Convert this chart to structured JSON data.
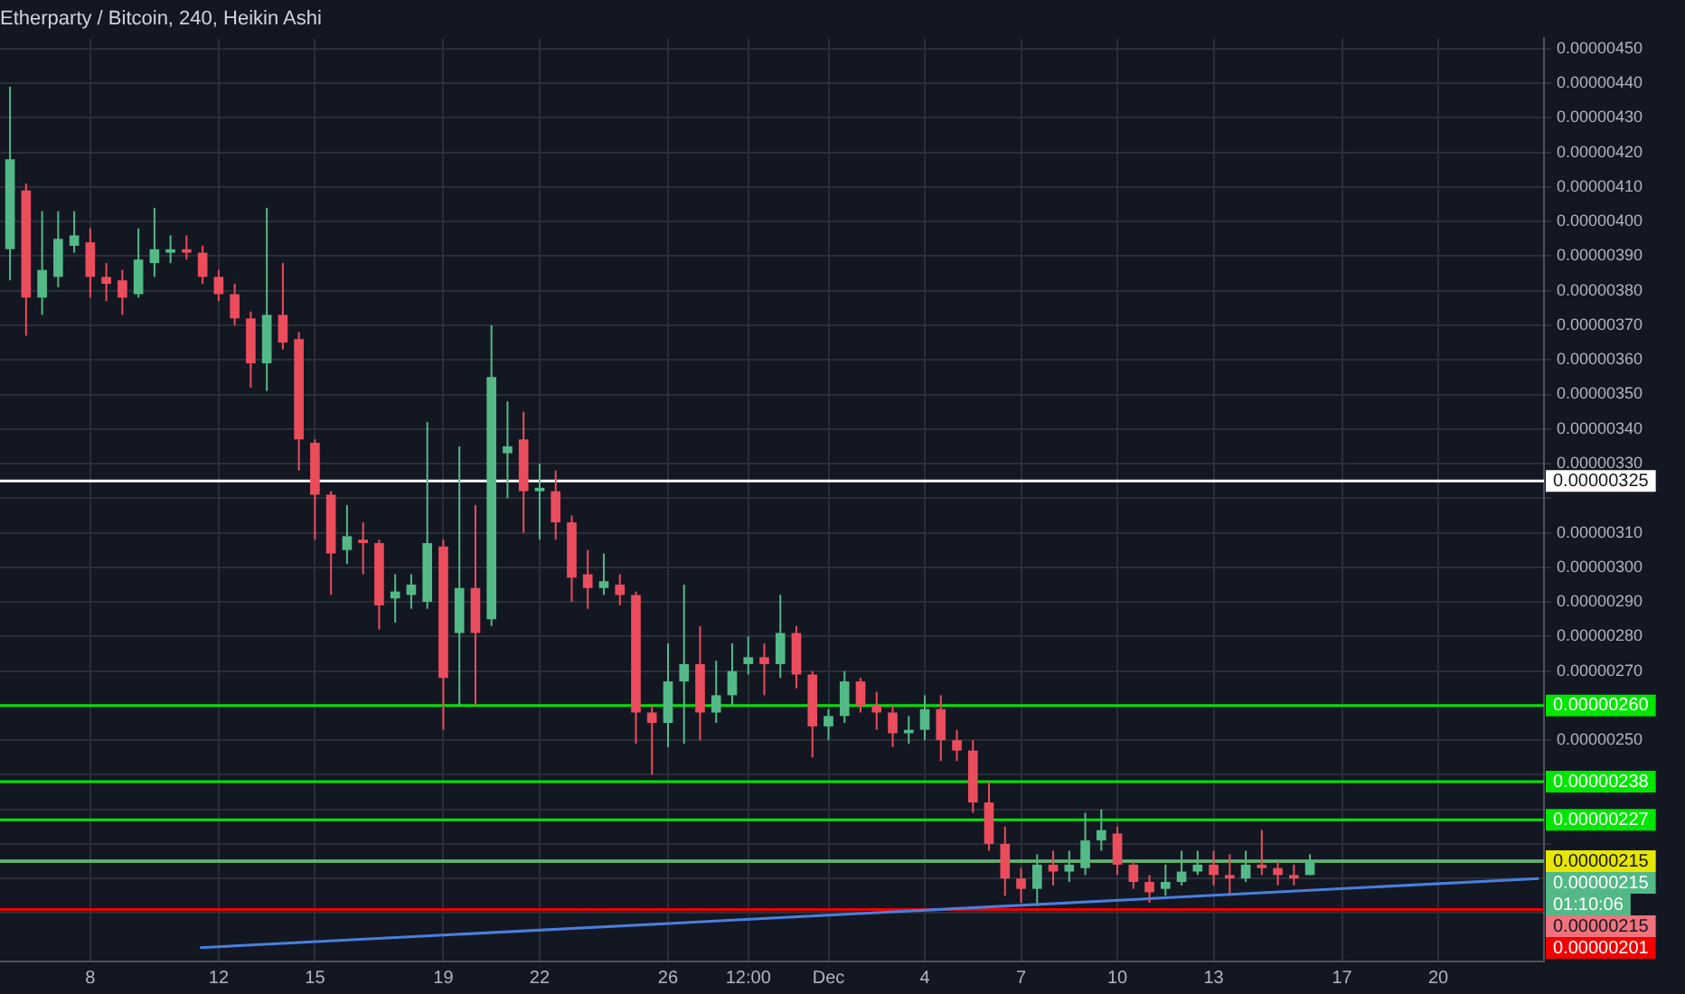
{
  "chart_data": {
    "type": "candlestick",
    "title": "Etherparty / Bitcoin, 240, Heikin Ashi",
    "x": [
      "--11-05T12:00",
      "--11-06T00:00",
      "--11-06T12:00",
      "--11-07T00:00",
      "--11-07T12:00",
      "--11-08T00:00",
      "--11-08T12:00",
      "--11-09T00:00",
      "--11-09T12:00",
      "--11-10T00:00",
      "--11-10T12:00",
      "--11-11T00:00",
      "--11-11T12:00",
      "--11-12T00:00",
      "--11-12T12:00",
      "--11-13T00:00",
      "--11-13T12:00",
      "--11-14T00:00",
      "--11-14T12:00",
      "--11-15T00:00",
      "--11-15T12:00",
      "--11-16T00:00",
      "--11-16T12:00",
      "--11-17T00:00",
      "--11-17T12:00",
      "--11-18T00:00",
      "--11-18T12:00",
      "--11-19T00:00",
      "--11-19T12:00",
      "--11-20T00:00",
      "--11-20T12:00",
      "--11-21T00:00",
      "--11-21T12:00",
      "--11-22T00:00",
      "--11-22T12:00",
      "--11-23T00:00",
      "--11-23T12:00",
      "--11-24T00:00",
      "--11-24T12:00",
      "--11-25T00:00",
      "--11-25T12:00",
      "--11-26T00:00",
      "--11-26T12:00",
      "--11-27T00:00",
      "--11-27T12:00",
      "--11-28T00:00",
      "--11-28T12:00",
      "--11-29T00:00",
      "--11-29T12:00",
      "--11-30T00:00",
      "--11-30T12:00",
      "--12-01T00:00",
      "--12-01T12:00",
      "--12-02T00:00",
      "--12-02T12:00",
      "--12-03T00:00",
      "--12-03T12:00",
      "--12-04T00:00",
      "--12-04T12:00",
      "--12-05T00:00",
      "--12-05T12:00",
      "--12-06T00:00",
      "--12-06T12:00",
      "--12-07T00:00",
      "--12-07T12:00",
      "--12-08T00:00",
      "--12-08T12:00",
      "--12-09T00:00",
      "--12-09T12:00",
      "--12-10T00:00",
      "--12-10T12:00",
      "--12-11T00:00",
      "--12-11T12:00",
      "--12-12T00:00",
      "--12-12T12:00",
      "--12-13T00:00",
      "--12-13T12:00",
      "--12-14T00:00",
      "--12-14T12:00",
      "--12-15T00:00",
      "--12-15T12:00",
      "--12-16T00:00"
    ],
    "ohlc": [
      [
        3.92e-06,
        4.39e-06,
        3.83e-06,
        4.18e-06
      ],
      [
        4.09e-06,
        4.11e-06,
        3.67e-06,
        3.78e-06
      ],
      [
        3.78e-06,
        4.03e-06,
        3.73e-06,
        3.86e-06
      ],
      [
        3.84e-06,
        4.03e-06,
        3.81e-06,
        3.95e-06
      ],
      [
        3.93e-06,
        4.03e-06,
        3.91e-06,
        3.96e-06
      ],
      [
        3.94e-06,
        3.98e-06,
        3.78e-06,
        3.84e-06
      ],
      [
        3.84e-06,
        3.88e-06,
        3.77e-06,
        3.82e-06
      ],
      [
        3.83e-06,
        3.86e-06,
        3.73e-06,
        3.78e-06
      ],
      [
        3.79e-06,
        3.98e-06,
        3.78e-06,
        3.89e-06
      ],
      [
        3.88e-06,
        4.04e-06,
        3.84e-06,
        3.92e-06
      ],
      [
        3.91e-06,
        3.96e-06,
        3.88e-06,
        3.92e-06
      ],
      [
        3.92e-06,
        3.96e-06,
        3.89e-06,
        3.91e-06
      ],
      [
        3.91e-06,
        3.93e-06,
        3.82e-06,
        3.84e-06
      ],
      [
        3.84e-06,
        3.86e-06,
        3.77e-06,
        3.79e-06
      ],
      [
        3.79e-06,
        3.82e-06,
        3.7e-06,
        3.72e-06
      ],
      [
        3.72e-06,
        3.74e-06,
        3.52e-06,
        3.59e-06
      ],
      [
        3.59e-06,
        4.04e-06,
        3.51e-06,
        3.73e-06
      ],
      [
        3.73e-06,
        3.88e-06,
        3.63e-06,
        3.65e-06
      ],
      [
        3.66e-06,
        3.68e-06,
        3.28e-06,
        3.37e-06
      ],
      [
        3.36e-06,
        3.37e-06,
        3.08e-06,
        3.21e-06
      ],
      [
        3.21e-06,
        3.22e-06,
        2.92e-06,
        3.04e-06
      ],
      [
        3.05e-06,
        3.18e-06,
        3.01e-06,
        3.09e-06
      ],
      [
        3.08e-06,
        3.13e-06,
        2.98e-06,
        3.07e-06
      ],
      [
        3.07e-06,
        3.08e-06,
        2.82e-06,
        2.89e-06
      ],
      [
        2.91e-06,
        2.98e-06,
        2.84e-06,
        2.93e-06
      ],
      [
        2.92e-06,
        2.98e-06,
        2.88e-06,
        2.95e-06
      ],
      [
        2.9e-06,
        3.42e-06,
        2.88e-06,
        3.07e-06
      ],
      [
        3.06e-06,
        3.08e-06,
        2.53e-06,
        2.68e-06
      ],
      [
        2.81e-06,
        3.35e-06,
        2.6e-06,
        2.94e-06
      ],
      [
        2.94e-06,
        3.18e-06,
        2.6e-06,
        2.81e-06
      ],
      [
        2.85e-06,
        3.7e-06,
        2.83e-06,
        3.55e-06
      ],
      [
        3.33e-06,
        3.48e-06,
        3.2e-06,
        3.35e-06
      ],
      [
        3.37e-06,
        3.45e-06,
        3.1e-06,
        3.22e-06
      ],
      [
        3.22e-06,
        3.3e-06,
        3.08e-06,
        3.23e-06
      ],
      [
        3.22e-06,
        3.28e-06,
        3.08e-06,
        3.13e-06
      ],
      [
        3.13e-06,
        3.15e-06,
        2.9e-06,
        2.97e-06
      ],
      [
        2.98e-06,
        3.05e-06,
        2.88e-06,
        2.94e-06
      ],
      [
        2.94e-06,
        3.04e-06,
        2.92e-06,
        2.96e-06
      ],
      [
        2.95e-06,
        2.98e-06,
        2.89e-06,
        2.92e-06
      ],
      [
        2.92e-06,
        2.93e-06,
        2.49e-06,
        2.58e-06
      ],
      [
        2.58e-06,
        2.6e-06,
        2.4e-06,
        2.55e-06
      ],
      [
        2.55e-06,
        2.78e-06,
        2.48e-06,
        2.67e-06
      ],
      [
        2.67e-06,
        2.95e-06,
        2.49e-06,
        2.72e-06
      ],
      [
        2.72e-06,
        2.83e-06,
        2.5e-06,
        2.58e-06
      ],
      [
        2.58e-06,
        2.73e-06,
        2.55e-06,
        2.63e-06
      ],
      [
        2.63e-06,
        2.78e-06,
        2.6e-06,
        2.7e-06
      ],
      [
        2.72e-06,
        2.8e-06,
        2.69e-06,
        2.74e-06
      ],
      [
        2.74e-06,
        2.78e-06,
        2.63e-06,
        2.72e-06
      ],
      [
        2.72e-06,
        2.92e-06,
        2.68e-06,
        2.81e-06
      ],
      [
        2.81e-06,
        2.83e-06,
        2.65e-06,
        2.69e-06
      ],
      [
        2.69e-06,
        2.7e-06,
        2.45e-06,
        2.54e-06
      ],
      [
        2.54e-06,
        2.59e-06,
        2.5e-06,
        2.57e-06
      ],
      [
        2.57e-06,
        2.7e-06,
        2.55e-06,
        2.67e-06
      ],
      [
        2.67e-06,
        2.68e-06,
        2.58e-06,
        2.6e-06
      ],
      [
        2.6e-06,
        2.64e-06,
        2.53e-06,
        2.58e-06
      ],
      [
        2.58e-06,
        2.6e-06,
        2.48e-06,
        2.52e-06
      ],
      [
        2.52e-06,
        2.57e-06,
        2.49e-06,
        2.53e-06
      ],
      [
        2.53e-06,
        2.63e-06,
        2.5e-06,
        2.59e-06
      ],
      [
        2.59e-06,
        2.63e-06,
        2.44e-06,
        2.5e-06
      ],
      [
        2.5e-06,
        2.53e-06,
        2.44e-06,
        2.47e-06
      ],
      [
        2.47e-06,
        2.5e-06,
        2.29e-06,
        2.32e-06
      ],
      [
        2.32e-06,
        2.38e-06,
        2.18e-06,
        2.2e-06
      ],
      [
        2.2e-06,
        2.25e-06,
        2.05e-06,
        2.1e-06
      ],
      [
        2.1e-06,
        2.13e-06,
        2.03e-06,
        2.07e-06
      ],
      [
        2.07e-06,
        2.17e-06,
        2.02e-06,
        2.14e-06
      ],
      [
        2.14e-06,
        2.18e-06,
        2.08e-06,
        2.12e-06
      ],
      [
        2.12e-06,
        2.18e-06,
        2.09e-06,
        2.14e-06
      ],
      [
        2.13e-06,
        2.29e-06,
        2.11e-06,
        2.21e-06
      ],
      [
        2.21e-06,
        2.3e-06,
        2.18e-06,
        2.24e-06
      ],
      [
        2.23e-06,
        2.25e-06,
        2.11e-06,
        2.14e-06
      ],
      [
        2.14e-06,
        2.15e-06,
        2.07e-06,
        2.09e-06
      ],
      [
        2.09e-06,
        2.11e-06,
        2.03e-06,
        2.06e-06
      ],
      [
        2.07e-06,
        2.14e-06,
        2.05e-06,
        2.09e-06
      ],
      [
        2.09e-06,
        2.18e-06,
        2.08e-06,
        2.12e-06
      ],
      [
        2.12e-06,
        2.18e-06,
        2.11e-06,
        2.14e-06
      ],
      [
        2.14e-06,
        2.18e-06,
        2.08e-06,
        2.11e-06
      ],
      [
        2.11e-06,
        2.17e-06,
        2.05e-06,
        2.1e-06
      ],
      [
        2.1e-06,
        2.18e-06,
        2.09e-06,
        2.14e-06
      ],
      [
        2.14e-06,
        2.24e-06,
        2.11e-06,
        2.13e-06
      ],
      [
        2.13e-06,
        2.15e-06,
        2.08e-06,
        2.11e-06
      ],
      [
        2.11e-06,
        2.14e-06,
        2.08e-06,
        2.1e-06
      ],
      [
        2.11e-06,
        2.17e-06,
        2.11e-06,
        2.15e-06
      ]
    ],
    "colors": [
      "#53b987",
      "#eb4d5c",
      "#53b987",
      "#53b987",
      "#53b987",
      "#eb4d5c",
      "#eb4d5c",
      "#eb4d5c",
      "#53b987",
      "#53b987",
      "#53b987",
      "#eb4d5c",
      "#eb4d5c",
      "#eb4d5c",
      "#eb4d5c",
      "#eb4d5c",
      "#53b987",
      "#eb4d5c",
      "#eb4d5c",
      "#eb4d5c",
      "#eb4d5c",
      "#53b987",
      "#eb4d5c",
      "#eb4d5c",
      "#53b987",
      "#53b987",
      "#53b987",
      "#eb4d5c",
      "#53b987",
      "#eb4d5c",
      "#53b987",
      "#53b987",
      "#eb4d5c",
      "#53b987",
      "#eb4d5c",
      "#eb4d5c",
      "#eb4d5c",
      "#53b987",
      "#eb4d5c",
      "#eb4d5c",
      "#eb4d5c",
      "#53b987",
      "#53b987",
      "#eb4d5c",
      "#53b987",
      "#53b987",
      "#53b987",
      "#eb4d5c",
      "#53b987",
      "#eb4d5c",
      "#eb4d5c",
      "#53b987",
      "#53b987",
      "#eb4d5c",
      "#eb4d5c",
      "#eb4d5c",
      "#53b987",
      "#53b987",
      "#eb4d5c",
      "#eb4d5c",
      "#eb4d5c",
      "#eb4d5c",
      "#eb4d5c",
      "#eb4d5c",
      "#53b987",
      "#eb4d5c",
      "#53b987",
      "#53b987",
      "#53b987",
      "#eb4d5c",
      "#eb4d5c",
      "#eb4d5c",
      "#53b987",
      "#53b987",
      "#53b987",
      "#eb4d5c",
      "#eb4d5c",
      "#53b987",
      "#eb4d5c",
      "#eb4d5c",
      "#eb4d5c",
      "#53b987"
    ],
    "series": [
      {
        "type": "line",
        "x": [
          "--11-11T10:00",
          "--12-23T03:00"
        ],
        "values": [
          1.9e-06,
          2.1e-06
        ],
        "color": "#4a7fde"
      }
    ],
    "xlim": [
      "--11-05T04:30",
      "--12-23T07:00"
    ],
    "xticks": [
      {
        "value": "--11-08",
        "label": "8"
      },
      {
        "value": "--11-12",
        "label": "12"
      },
      {
        "value": "--11-15",
        "label": "15"
      },
      {
        "value": "--11-19",
        "label": "19"
      },
      {
        "value": "--11-22",
        "label": "22"
      },
      {
        "value": "--11-26",
        "label": "26"
      },
      {
        "value": "--11-28T12:00",
        "label": "12:00"
      },
      {
        "value": "--12-01",
        "label": "Dec"
      },
      {
        "value": "--12-04",
        "label": "4"
      },
      {
        "value": "--12-07",
        "label": "7"
      },
      {
        "value": "--12-10",
        "label": "10"
      },
      {
        "value": "--12-13",
        "label": "13"
      },
      {
        "value": "--12-17",
        "label": "17"
      },
      {
        "value": "--12-20",
        "label": "20"
      }
    ],
    "ylim": [
      1.86e-06,
      4.53e-06
    ],
    "yticks": [
      {
        "value": 2e-06,
        "label": null
      },
      {
        "value": 2.1e-06,
        "label": null
      },
      {
        "value": 2.2e-06,
        "label": null
      },
      {
        "value": 2.3e-06,
        "label": null
      },
      {
        "value": 2.4e-06,
        "label": null
      },
      {
        "value": 2.5e-06,
        "label": "0.00000250"
      },
      {
        "value": 2.6e-06,
        "label": null
      },
      {
        "value": 2.7e-06,
        "label": "0.00000270"
      },
      {
        "value": 2.8e-06,
        "label": "0.00000280"
      },
      {
        "value": 2.9e-06,
        "label": "0.00000290"
      },
      {
        "value": 3e-06,
        "label": "0.00000300"
      },
      {
        "value": 3.1e-06,
        "label": "0.00000310"
      },
      {
        "value": 3.2e-06,
        "label": null
      },
      {
        "value": 3.3e-06,
        "label": "0.00000330"
      },
      {
        "value": 3.4e-06,
        "label": "0.00000340"
      },
      {
        "value": 3.5e-06,
        "label": "0.00000350"
      },
      {
        "value": 3.6e-06,
        "label": "0.00000360"
      },
      {
        "value": 3.7e-06,
        "label": "0.00000370"
      },
      {
        "value": 3.8e-06,
        "label": "0.00000380"
      },
      {
        "value": 3.9e-06,
        "label": "0.00000390"
      },
      {
        "value": 4e-06,
        "label": "0.00000400"
      },
      {
        "value": 4.1e-06,
        "label": "0.00000410"
      },
      {
        "value": 4.2e-06,
        "label": "0.00000420"
      },
      {
        "value": 4.3e-06,
        "label": "0.00000430"
      },
      {
        "value": 4.4e-06,
        "label": "0.00000440"
      },
      {
        "value": 4.5e-06,
        "label": "0.00000450"
      }
    ],
    "ref_lines": [
      {
        "axis": "y",
        "value": 3.25e-06,
        "label": "0.00000325",
        "color": "#ffffff"
      },
      {
        "axis": "y",
        "value": 2.6e-06,
        "label": "0.00000260",
        "color": "#00e600"
      },
      {
        "axis": "y",
        "value": 2.38e-06,
        "label": "0.00000238",
        "color": "#00e600"
      },
      {
        "axis": "y",
        "value": 2.27e-06,
        "label": "0.00000227",
        "color": "#00e600"
      },
      {
        "axis": "y",
        "value": 2.15e-06,
        "label": "0.00000215",
        "color": "#e6e600"
      },
      {
        "axis": "y",
        "value": 2.15e-06,
        "label": "0.00000215",
        "color": "#53b987"
      },
      {
        "axis": "y",
        "value": 2.01e-06,
        "label": "0.00000201",
        "color": "#f20000"
      }
    ],
    "annotations": [
      "01:10:06",
      "0.00000215"
    ],
    "grid": true,
    "legend": false
  }
}
